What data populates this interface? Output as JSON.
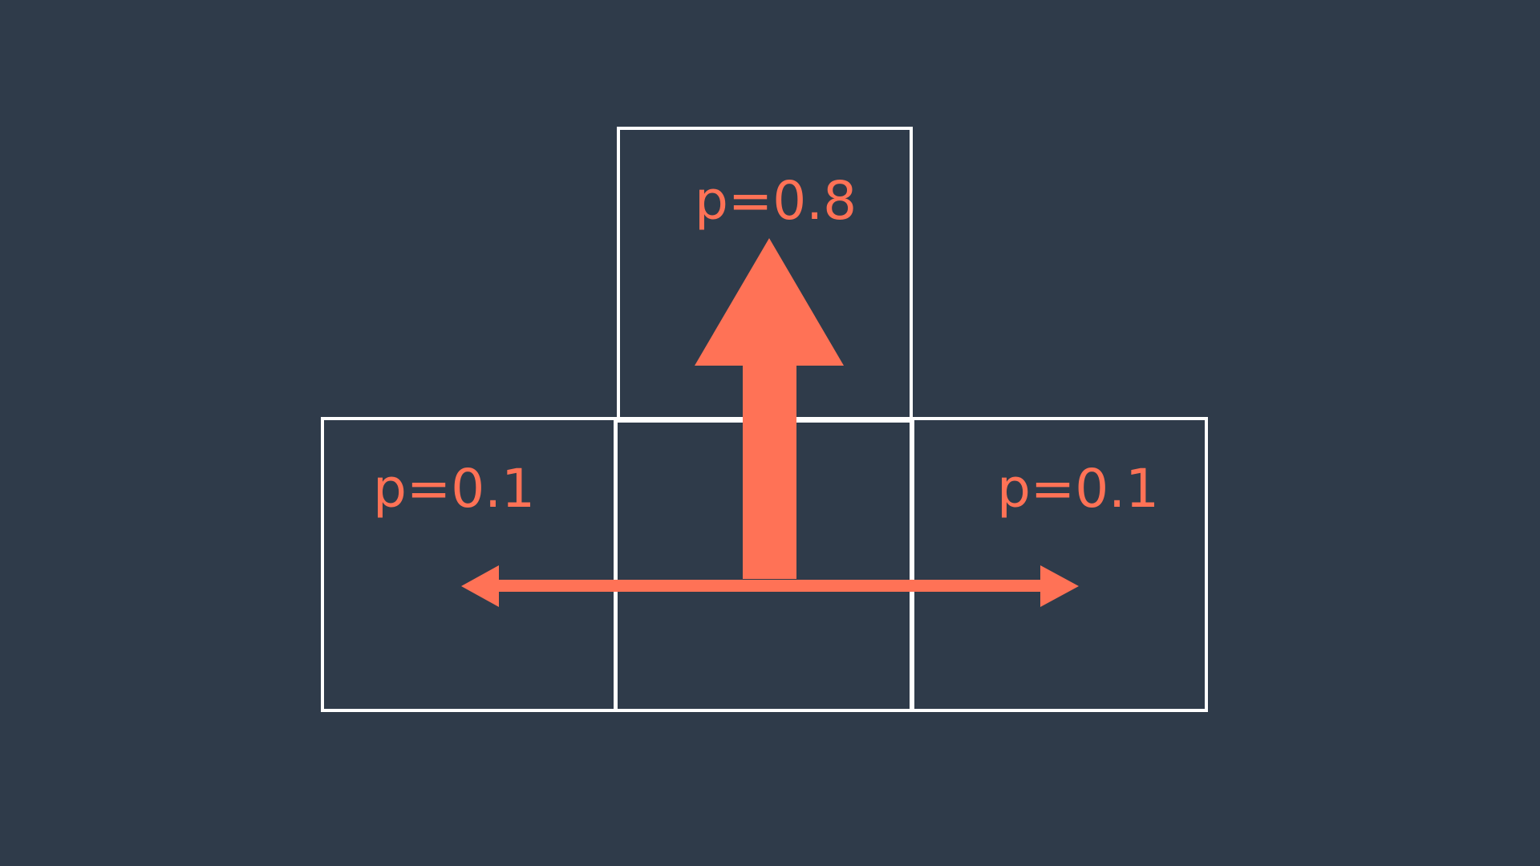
{
  "colors": {
    "background": "#2f3b4a",
    "grid": "#ffffff",
    "accent": "#ff7256"
  },
  "cells": {
    "top": {
      "label": "p=0.8"
    },
    "left": {
      "label": "p=0.1"
    },
    "center": {
      "label": ""
    },
    "right": {
      "label": "p=0.1"
    }
  },
  "arrows": {
    "forward": "up-arrow-icon",
    "lateral": "left-right-arrow-icon"
  }
}
